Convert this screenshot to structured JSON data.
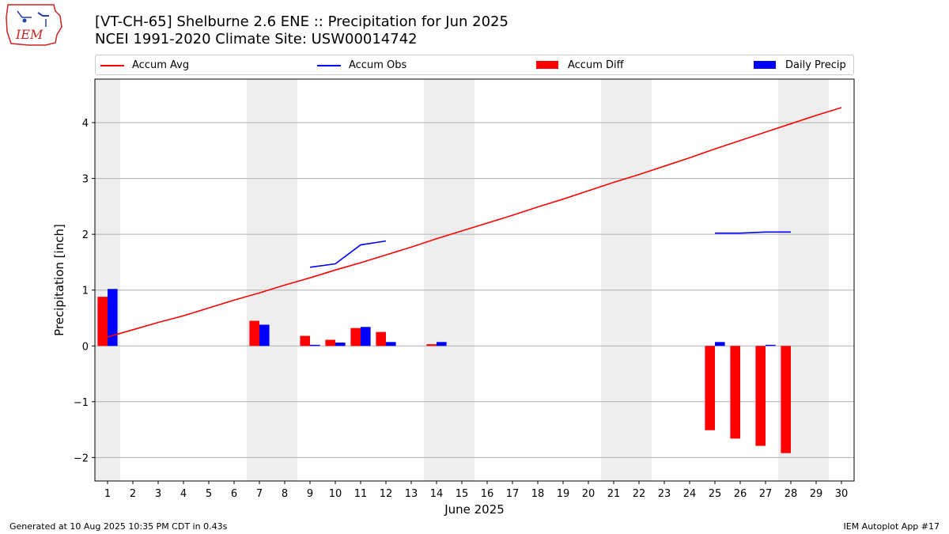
{
  "logo": {
    "text": "IEM"
  },
  "header": {
    "title": "[VT-CH-65] Shelburne 2.6 ENE :: Precipitation for Jun 2025",
    "subtitle": "NCEI 1991-2020 Climate Site: USW00014742"
  },
  "legend": {
    "placement": "top, above plot",
    "items": [
      {
        "label": "Accum Avg",
        "color": "#ff0000",
        "kind": "line"
      },
      {
        "label": "Accum Obs",
        "color": "#0000ff",
        "kind": "line"
      },
      {
        "label": "Accum Diff",
        "color": "#ff0000",
        "kind": "bar"
      },
      {
        "label": "Daily Precip",
        "color": "#0000ff",
        "kind": "bar"
      }
    ]
  },
  "chart_data": {
    "type": "bar",
    "xlabel": "June 2025",
    "ylabel": "Precipitation [inch]",
    "ylim": [
      -2.42,
      4.78
    ],
    "xlim": [
      0.5,
      30.5
    ],
    "yticks": [
      -2,
      -1,
      0,
      1,
      2,
      3,
      4
    ],
    "ytick_labels": [
      "−2",
      "−1",
      "0",
      "1",
      "2",
      "3",
      "4"
    ],
    "xticks": [
      1,
      2,
      3,
      4,
      5,
      6,
      7,
      8,
      9,
      10,
      11,
      12,
      13,
      14,
      15,
      16,
      17,
      18,
      19,
      20,
      21,
      22,
      23,
      24,
      25,
      26,
      27,
      28,
      29,
      30
    ],
    "grid": "horizontal",
    "weekend_shading": [
      [
        0.5,
        1.5
      ],
      [
        6.5,
        8.5
      ],
      [
        13.5,
        15.5
      ],
      [
        20.5,
        22.5
      ],
      [
        27.5,
        29.5
      ]
    ],
    "shade_color": "#eeeeee",
    "series": [
      {
        "name": "Accum Avg",
        "kind": "line",
        "color": "#ff0000",
        "x": [
          1,
          2,
          3,
          4,
          5,
          6,
          7,
          8,
          9,
          10,
          11,
          12,
          13,
          14,
          15,
          16,
          17,
          18,
          19,
          20,
          21,
          22,
          23,
          24,
          25,
          26,
          27,
          28,
          29,
          30
        ],
        "values": [
          0.16,
          0.29,
          0.42,
          0.54,
          0.68,
          0.82,
          0.95,
          1.09,
          1.22,
          1.36,
          1.49,
          1.63,
          1.77,
          1.92,
          2.06,
          2.2,
          2.34,
          2.49,
          2.63,
          2.78,
          2.93,
          3.07,
          3.22,
          3.37,
          3.53,
          3.68,
          3.83,
          3.98,
          4.13,
          4.27
        ]
      },
      {
        "name": "Accum Obs",
        "kind": "line",
        "color": "#0000ff",
        "segments": [
          {
            "x": [
              9,
              10,
              11,
              12
            ],
            "values": [
              1.41,
              1.47,
              1.81,
              1.88
            ]
          },
          {
            "x": [
              25,
              26,
              27,
              28
            ],
            "values": [
              2.02,
              2.02,
              2.04,
              2.04
            ]
          }
        ]
      },
      {
        "name": "Accum Diff",
        "kind": "bar",
        "color": "#ff0000",
        "x": [
          1,
          7,
          9,
          10,
          11,
          12,
          14,
          25,
          26,
          27,
          28
        ],
        "values": [
          0.88,
          0.45,
          0.18,
          0.11,
          0.32,
          0.25,
          0.03,
          -1.51,
          -1.66,
          -1.79,
          -1.92
        ]
      },
      {
        "name": "Daily Precip",
        "kind": "bar",
        "color": "#0000ff",
        "x": [
          1,
          7,
          9,
          10,
          11,
          12,
          14,
          25,
          27
        ],
        "values": [
          1.02,
          0.38,
          0.02,
          0.06,
          0.34,
          0.07,
          0.07,
          0.07,
          0.02
        ]
      }
    ]
  },
  "footer": {
    "generated": "Generated at 10 Aug 2025 10:35 PM CDT in 0.43s",
    "app": "IEM Autoplot App #17"
  }
}
